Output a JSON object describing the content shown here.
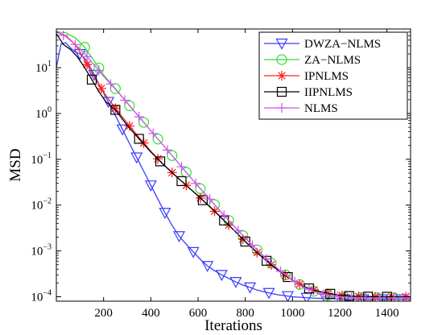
{
  "chart_data": {
    "type": "line",
    "xlabel": "Iterations",
    "ylabel": "MSD",
    "xlim": [
      0,
      1500
    ],
    "ylim": [
      8e-05,
      70
    ],
    "y_scale": "log",
    "grid": false,
    "legend_position": "top-right",
    "x_ticks": [
      200,
      400,
      600,
      800,
      1000,
      1200,
      1400
    ],
    "x_tick_labels": [
      "200",
      "400",
      "600",
      "800",
      "1000",
      "1200",
      "1400"
    ],
    "y_ticks": [
      {
        "value": 0.0001,
        "base": "10",
        "exp": "−4"
      },
      {
        "value": 0.001,
        "base": "10",
        "exp": "−3"
      },
      {
        "value": 0.01,
        "base": "10",
        "exp": "−2"
      },
      {
        "value": 0.1,
        "base": "10",
        "exp": "−1"
      },
      {
        "value": 1,
        "base": "10",
        "exp": "0"
      },
      {
        "value": 10,
        "base": "10",
        "exp": "1"
      }
    ],
    "series": [
      {
        "name": "DWZA−NLMS",
        "color": "#3a3aff",
        "marker": "triangle-down",
        "x": [
          0,
          20,
          40,
          60,
          80,
          100,
          130,
          160,
          190,
          220,
          250,
          280,
          310,
          340,
          370,
          400,
          430,
          460,
          490,
          520,
          550,
          580,
          610,
          640,
          670,
          700,
          730,
          760,
          790,
          820,
          850,
          880,
          910,
          940,
          970,
          1000,
          1030,
          1060,
          1090,
          1120,
          1150,
          1180,
          1210,
          1240,
          1270,
          1300,
          1330,
          1360,
          1390,
          1420,
          1450,
          1480,
          1500
        ],
        "y": [
          10,
          33,
          35,
          27,
          22,
          20,
          14,
          7,
          3.5,
          1.8,
          0.9,
          0.45,
          0.22,
          0.11,
          0.055,
          0.027,
          0.0135,
          0.0068,
          0.0036,
          0.0021,
          0.0014,
          0.00095,
          0.00065,
          0.00047,
          0.00037,
          0.0003,
          0.00025,
          0.00021,
          0.00018,
          0.00016,
          0.00014,
          0.000128,
          0.000118,
          0.00011,
          0.000105,
          0.0001,
          9.75e-05,
          9.5e-05,
          9.3e-05,
          9.2e-05,
          9.1e-05,
          9e-05,
          8.9e-05,
          8.9e-05,
          8.8e-05,
          8.8e-05,
          8.8e-05,
          8.8e-05,
          8.8e-05,
          8.8e-05,
          8.8e-05,
          8.8e-05,
          8.8e-05
        ],
        "marker_x": [
          100,
          160,
          220,
          280,
          340,
          400,
          460,
          520,
          580,
          640,
          700,
          760,
          820,
          900,
          980,
          1060,
          1140,
          1220,
          1300,
          1380,
          1460
        ]
      },
      {
        "name": "ZA−NLMS",
        "color": "#33dd33",
        "marker": "circle",
        "x": [
          0,
          40,
          80,
          120,
          160,
          200,
          250,
          300,
          350,
          400,
          450,
          500,
          550,
          600,
          650,
          700,
          750,
          800,
          850,
          900,
          950,
          1000,
          1050,
          1100,
          1150,
          1200,
          1250,
          1300,
          1350,
          1400,
          1450,
          1500
        ],
        "y": [
          60,
          58,
          45,
          28,
          14,
          7,
          3.5,
          1.7,
          0.85,
          0.42,
          0.21,
          0.105,
          0.052,
          0.026,
          0.0135,
          0.0068,
          0.0036,
          0.0019,
          0.00105,
          0.0006,
          0.00036,
          0.00023,
          0.00016,
          0.000125,
          0.000108,
          0.0001,
          9.7e-05,
          9.6e-05,
          9.5e-05,
          9.5e-05,
          9.5e-05,
          9.5e-05
        ],
        "marker_x": [
          120,
          180,
          250,
          310,
          370,
          430,
          490,
          550,
          610,
          670,
          730,
          790,
          850,
          910,
          970,
          1030,
          1090,
          1150,
          1220,
          1290,
          1360,
          1430
        ]
      },
      {
        "name": "IPNLMS",
        "color": "#ff2222",
        "marker": "asterisk",
        "x": [
          0,
          40,
          80,
          110,
          140,
          170,
          200,
          250,
          300,
          350,
          400,
          450,
          500,
          550,
          600,
          650,
          700,
          750,
          800,
          850,
          900,
          950,
          1000,
          1050,
          1100,
          1150,
          1200,
          1250,
          1300,
          1350,
          1400,
          1450,
          1500
        ],
        "y": [
          60,
          50,
          32,
          18,
          9.5,
          5.2,
          2.9,
          1.3,
          0.62,
          0.3,
          0.15,
          0.08,
          0.046,
          0.027,
          0.016,
          0.0092,
          0.0052,
          0.0029,
          0.0016,
          0.00092,
          0.00055,
          0.00034,
          0.00023,
          0.000165,
          0.000135,
          0.000118,
          0.000108,
          0.000103,
          0.000101,
          0.0001,
          0.0001,
          0.0001,
          0.0001
        ],
        "marker_x": [
          130,
          190,
          250,
          310,
          370,
          430,
          490,
          550,
          610,
          670,
          730,
          790,
          850,
          910,
          970,
          1030,
          1090,
          1150,
          1210,
          1280,
          1350,
          1420,
          1480
        ]
      },
      {
        "name": "IIPNLMS",
        "color": "#000000",
        "marker": "square",
        "x": [
          0,
          30,
          60,
          90,
          120,
          150,
          180,
          210,
          250,
          300,
          350,
          400,
          450,
          500,
          550,
          600,
          650,
          700,
          750,
          800,
          850,
          900,
          950,
          1000,
          1050,
          1100,
          1150,
          1200,
          1250,
          1300,
          1350,
          1400,
          1450,
          1500
        ],
        "y": [
          55,
          32,
          25,
          17,
          10,
          5.5,
          3,
          1.8,
          1.2,
          0.55,
          0.28,
          0.145,
          0.08,
          0.046,
          0.027,
          0.016,
          0.0092,
          0.0052,
          0.0029,
          0.0016,
          0.00092,
          0.00055,
          0.00034,
          0.00023,
          0.000165,
          0.000135,
          0.000118,
          0.000108,
          0.000103,
          0.000101,
          0.0001,
          0.0001,
          0.0001,
          0.0001
        ],
        "marker_x": [
          150,
          250,
          350,
          440,
          530,
          620,
          710,
          800,
          890,
          980,
          1070,
          1160,
          1240,
          1320,
          1400
        ]
      },
      {
        "name": "NLMS",
        "color": "#cc55ee",
        "marker": "plus",
        "x": [
          0,
          40,
          80,
          120,
          160,
          200,
          250,
          300,
          350,
          400,
          450,
          500,
          550,
          600,
          650,
          700,
          750,
          800,
          850,
          900,
          950,
          1000,
          1050,
          1100,
          1150,
          1200,
          1250,
          1300,
          1350,
          1400,
          1450,
          1500
        ],
        "y": [
          60,
          48,
          32,
          20,
          11.5,
          6.5,
          3.4,
          1.7,
          0.85,
          0.42,
          0.21,
          0.105,
          0.052,
          0.026,
          0.0135,
          0.0068,
          0.0036,
          0.0019,
          0.00105,
          0.0006,
          0.00036,
          0.00023,
          0.00016,
          0.000125,
          0.000108,
          0.0001,
          9.7e-05,
          9.6e-05,
          9.5e-05,
          9.5e-05,
          9.5e-05,
          9.5e-05
        ],
        "marker_x": [
          30,
          80,
          130,
          180,
          230,
          290,
          350,
          410,
          470,
          530,
          590,
          650,
          710,
          770,
          830,
          890,
          950,
          1010,
          1070,
          1130,
          1190,
          1250,
          1310,
          1370,
          1430,
          1490
        ]
      }
    ]
  }
}
